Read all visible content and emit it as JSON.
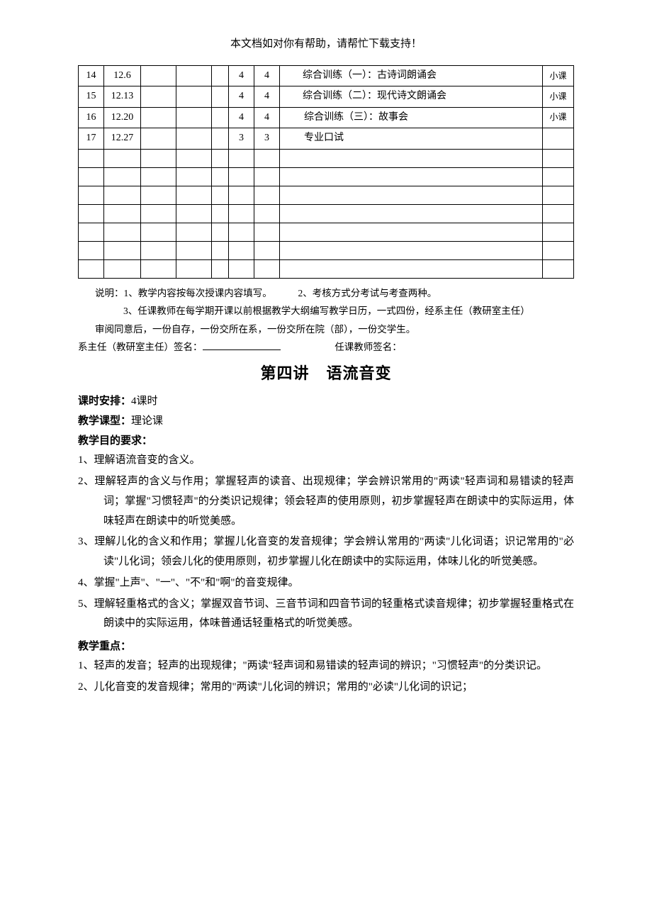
{
  "header_note": "本文档如对你有帮助，请帮忙下载支持！",
  "table": {
    "rows": [
      {
        "seq": "14",
        "date": "12.6",
        "n1": "4",
        "n2": "4",
        "content": "综合训练（一）：古诗词朗诵会",
        "tag": "小课",
        "tall": true
      },
      {
        "seq": "15",
        "date": "12.13",
        "n1": "4",
        "n2": "4",
        "content": "综合训练（二）：现代诗文朗诵会",
        "tag": "小课",
        "tall": true
      },
      {
        "seq": "16",
        "date": "12.20",
        "n1": "4",
        "n2": "4",
        "content": "综合训练（三）：故事会",
        "tag": "小课",
        "tall": false
      },
      {
        "seq": "17",
        "date": "12.27",
        "n1": "3",
        "n2": "3",
        "content": "专业口试",
        "tag": "",
        "tall": false
      },
      {
        "seq": "",
        "date": "",
        "n1": "",
        "n2": "",
        "content": "",
        "tag": "",
        "tall": false
      },
      {
        "seq": "",
        "date": "",
        "n1": "",
        "n2": "",
        "content": "",
        "tag": "",
        "tall": false
      },
      {
        "seq": "",
        "date": "",
        "n1": "",
        "n2": "",
        "content": "",
        "tag": "",
        "tall": false
      },
      {
        "seq": "",
        "date": "",
        "n1": "",
        "n2": "",
        "content": "",
        "tag": "",
        "tall": false
      },
      {
        "seq": "",
        "date": "",
        "n1": "",
        "n2": "",
        "content": "",
        "tag": "",
        "tall": false
      },
      {
        "seq": "",
        "date": "",
        "n1": "",
        "n2": "",
        "content": "",
        "tag": "",
        "tall": false
      },
      {
        "seq": "",
        "date": "",
        "n1": "",
        "n2": "",
        "content": "",
        "tag": "",
        "tall": false
      }
    ]
  },
  "explain": {
    "line1_a": "说明：1、教学内容按每次授课内容填写。",
    "line1_b": "2、考核方式分考试与考查两种。",
    "line2": "3、任课教师在每学期开课以前根据教学大纲编写教学日历，一式四份，经系主任（教研室主任）",
    "line3": "审阅同意后，一份自存，一份交所在系，一份交所在院（部），一份交学生。"
  },
  "signatures": {
    "left": "系主任（教研室主任）签名：",
    "right": "任课教师签名："
  },
  "lecture": {
    "title_left": "第四讲",
    "title_right": "语流音变",
    "schedule_label": "课时安排：",
    "schedule_value": "4课时",
    "type_label": "教学课型：",
    "type_value": "理论课",
    "objective_label": "教学目的要求：",
    "objectives": [
      "1、理解语流音变的含义。",
      "2、理解轻声的含义与作用；掌握轻声的读音、出现规律；学会辨识常用的\"两读\"轻声词和易错读的轻声词；掌握\"习惯轻声\"的分类识记规律；领会轻声的使用原则，初步掌握轻声在朗读中的实际运用，体味轻声在朗读中的听觉美感。",
      "3、理解儿化的含义和作用；掌握儿化音变的发音规律；学会辨认常用的\"两读\"儿化词语；识记常用的\"必读\"儿化词；领会儿化的使用原则，初步掌握儿化在朗读中的实际运用，体味儿化的听觉美感。",
      "4、掌握\"上声\"、\"一\"、\"不\"和\"啊\"的音变规律。",
      "5、理解轻重格式的含义；掌握双音节词、三音节词和四音节词的轻重格式读音规律；初步掌握轻重格式在朗读中的实际运用，体味普通话轻重格式的听觉美感。"
    ],
    "keypoint_label": "教学重点：",
    "keypoints": [
      "1、轻声的发音；轻声的出现规律；\"两读\"轻声词和易错读的轻声词的辨识；\"习惯轻声\"的分类识记。",
      "2、儿化音变的发音规律；常用的\"两读\"儿化词的辨识；常用的\"必读\"儿化词的识记；"
    ]
  }
}
